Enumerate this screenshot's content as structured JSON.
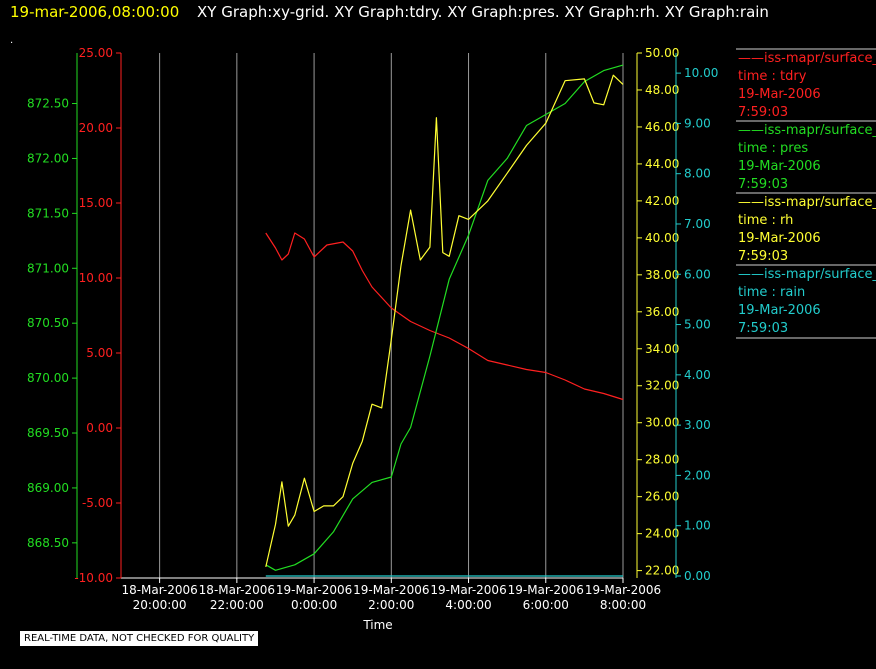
{
  "header": {
    "timestamp": "19-mar-2006,08:00:00",
    "title": "XY Graph:xy-grid.  XY Graph:tdry.  XY Graph:pres.  XY Graph:rh.  XY Graph:rain"
  },
  "marker": ".",
  "disclaimer": "REAL-TIME DATA, NOT CHECKED FOR QUALITY",
  "legend": [
    {
      "line": "iss-mapr/surface_m",
      "var": "time : tdry",
      "date": "19-Mar-2006",
      "time": "7:59:03",
      "color": "#ff2020"
    },
    {
      "line": "iss-mapr/surface_m",
      "var": "time : pres",
      "date": "19-Mar-2006",
      "time": "7:59:03",
      "color": "#22dd22"
    },
    {
      "line": "iss-mapr/surface_m",
      "var": "time : rh",
      "date": "19-Mar-2006",
      "time": "7:59:03",
      "color": "#ffff33"
    },
    {
      "line": "iss-mapr/surface_m",
      "var": "time : rain",
      "date": "19-Mar-2006",
      "time": "7:59:03",
      "color": "#22cccc"
    }
  ],
  "chart_data": {
    "type": "line",
    "xlabel": "Time",
    "x_range": [
      "18-Mar-2006 19:00",
      "19-Mar-2006 08:00"
    ],
    "x_ticks": [
      {
        "date": "18-Mar-2006",
        "time": "20:00:00"
      },
      {
        "date": "18-Mar-2006",
        "time": "22:00:00"
      },
      {
        "date": "19-Mar-2006",
        "time": "0:00:00"
      },
      {
        "date": "19-Mar-2006",
        "time": "2:00:00"
      },
      {
        "date": "19-Mar-2006",
        "time": "4:00:00"
      },
      {
        "date": "19-Mar-2006",
        "time": "6:00:00"
      },
      {
        "date": "19-Mar-2006",
        "time": "8:00:00"
      }
    ],
    "grid": "vertical",
    "axes": {
      "tdry": {
        "ticks": [
          "-10.00",
          "-5.00",
          "0.00",
          "5.00",
          "10.00",
          "15.00",
          "20.00",
          "25.00"
        ],
        "range": [
          -10,
          25
        ],
        "color": "#ff2020"
      },
      "pres": {
        "ticks": [
          "868.50",
          "869.00",
          "869.50",
          "870.00",
          "870.50",
          "871.00",
          "871.50",
          "872.00",
          "872.50"
        ],
        "range": [
          868.18,
          872.96
        ],
        "color": "#22dd22"
      },
      "rh": {
        "ticks": [
          "22.00",
          "24.00",
          "26.00",
          "28.00",
          "30.00",
          "32.00",
          "34.00",
          "36.00",
          "38.00",
          "40.00",
          "42.00",
          "44.00",
          "46.00",
          "48.00",
          "50.00"
        ],
        "range": [
          21.6,
          50.0
        ],
        "color": "#ffff33"
      },
      "rain": {
        "ticks": [
          "0.00",
          "1.00",
          "2.00",
          "3.00",
          "4.00",
          "5.00",
          "6.00",
          "7.00",
          "8.00",
          "9.00",
          "10.00"
        ],
        "range": [
          -0.04,
          10.4
        ],
        "color": "#22cccc"
      }
    },
    "series": [
      {
        "name": "time : tdry",
        "axis": "tdry",
        "x": [
          "18-Mar-2006 22:45",
          "18-Mar-2006 23:00",
          "18-Mar-2006 23:10",
          "18-Mar-2006 23:20",
          "18-Mar-2006 23:30",
          "18-Mar-2006 23:45",
          "19-Mar-2006 00:00",
          "19-Mar-2006 00:20",
          "19-Mar-2006 00:45",
          "19-Mar-2006 01:00",
          "19-Mar-2006 01:15",
          "19-Mar-2006 01:30",
          "19-Mar-2006 02:00",
          "19-Mar-2006 02:30",
          "19-Mar-2006 03:00",
          "19-Mar-2006 03:30",
          "19-Mar-2006 04:00",
          "19-Mar-2006 04:30",
          "19-Mar-2006 05:00",
          "19-Mar-2006 05:30",
          "19-Mar-2006 06:00",
          "19-Mar-2006 06:30",
          "19-Mar-2006 07:00",
          "19-Mar-2006 07:30",
          "19-Mar-2006 08:00"
        ],
        "values": [
          13.0,
          12.0,
          11.2,
          11.6,
          13.0,
          12.6,
          11.4,
          12.2,
          12.4,
          11.8,
          10.5,
          9.4,
          8.0,
          7.1,
          6.5,
          6.0,
          5.3,
          4.5,
          4.2,
          3.9,
          3.7,
          3.2,
          2.6,
          2.3,
          1.9
        ]
      },
      {
        "name": "time : pres",
        "axis": "pres",
        "x": [
          "18-Mar-2006 22:45",
          "18-Mar-2006 23:00",
          "18-Mar-2006 23:30",
          "19-Mar-2006 00:00",
          "19-Mar-2006 00:30",
          "19-Mar-2006 01:00",
          "19-Mar-2006 01:30",
          "19-Mar-2006 02:00",
          "19-Mar-2006 02:15",
          "19-Mar-2006 02:30",
          "19-Mar-2006 03:00",
          "19-Mar-2006 03:30",
          "19-Mar-2006 04:00",
          "19-Mar-2006 04:30",
          "19-Mar-2006 05:00",
          "19-Mar-2006 05:30",
          "19-Mar-2006 06:00",
          "19-Mar-2006 06:30",
          "19-Mar-2006 07:00",
          "19-Mar-2006 07:30",
          "19-Mar-2006 08:00"
        ],
        "values": [
          868.3,
          868.25,
          868.3,
          868.4,
          868.6,
          868.9,
          869.05,
          869.1,
          869.4,
          869.55,
          870.2,
          870.9,
          871.3,
          871.8,
          872.0,
          872.3,
          872.4,
          872.5,
          872.7,
          872.8,
          872.85
        ]
      },
      {
        "name": "time : rh",
        "axis": "rh",
        "x": [
          "18-Mar-2006 22:45",
          "18-Mar-2006 23:00",
          "18-Mar-2006 23:10",
          "18-Mar-2006 23:20",
          "18-Mar-2006 23:30",
          "18-Mar-2006 23:45",
          "19-Mar-2006 00:00",
          "19-Mar-2006 00:15",
          "19-Mar-2006 00:30",
          "19-Mar-2006 00:45",
          "19-Mar-2006 01:00",
          "19-Mar-2006 01:15",
          "19-Mar-2006 01:30",
          "19-Mar-2006 01:45",
          "19-Mar-2006 02:00",
          "19-Mar-2006 02:15",
          "19-Mar-2006 02:30",
          "19-Mar-2006 02:45",
          "19-Mar-2006 03:00",
          "19-Mar-2006 03:10",
          "19-Mar-2006 03:20",
          "19-Mar-2006 03:30",
          "19-Mar-2006 03:45",
          "19-Mar-2006 04:00",
          "19-Mar-2006 04:30",
          "19-Mar-2006 05:00",
          "19-Mar-2006 05:30",
          "19-Mar-2006 06:00",
          "19-Mar-2006 06:30",
          "19-Mar-2006 07:00",
          "19-Mar-2006 07:15",
          "19-Mar-2006 07:30",
          "19-Mar-2006 07:45",
          "19-Mar-2006 08:00"
        ],
        "values": [
          22.2,
          24.5,
          26.8,
          24.4,
          25.0,
          27.0,
          25.2,
          25.5,
          25.5,
          26.0,
          27.8,
          29.0,
          31.0,
          30.8,
          34.5,
          38.5,
          41.5,
          38.8,
          39.5,
          46.5,
          39.2,
          39.0,
          41.2,
          41.0,
          42.0,
          43.5,
          45.0,
          46.2,
          48.5,
          48.6,
          47.3,
          47.2,
          48.8,
          48.3
        ]
      },
      {
        "name": "time : rain",
        "axis": "rain",
        "x": [
          "18-Mar-2006 22:45",
          "19-Mar-2006 08:00"
        ],
        "values": [
          0.0,
          0.0
        ]
      }
    ]
  }
}
